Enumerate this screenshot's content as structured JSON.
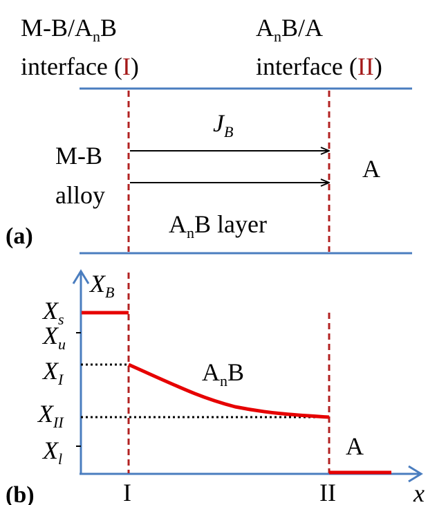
{
  "colors": {
    "blue": "#4a7dbf",
    "red": "#e60000",
    "dark_red": "#a31919",
    "text": "#000000"
  },
  "panel_a": {
    "label": "(a)",
    "interface_I": {
      "line1_main": "M-B/A",
      "line1_sub": "n",
      "line1_end": "B",
      "line2": "interface (",
      "roman": "I",
      "close": ")"
    },
    "interface_II": {
      "line1_main": "A",
      "line1_sub": "n",
      "line1_end": "B/A",
      "line2": "interface (",
      "roman": "II",
      "close": ")"
    },
    "flux": {
      "main": "J",
      "sub": "B"
    },
    "left_region": {
      "line1": "M-B",
      "line2": "alloy"
    },
    "right_region": "A",
    "layer": {
      "main": "A",
      "sub": "n",
      "end": "B layer"
    }
  },
  "panel_b": {
    "label": "(b)",
    "y_axis_label": {
      "main": "X",
      "sub": "B"
    },
    "x_axis_label": "x",
    "y_ticks": [
      {
        "main": "X",
        "sub": "s"
      },
      {
        "main": "X",
        "sub": "u"
      },
      {
        "main": "X",
        "sub": "I"
      },
      {
        "main": "X",
        "sub": "II"
      },
      {
        "main": "X",
        "sub": "l"
      }
    ],
    "x_ticks": [
      "I",
      "II"
    ],
    "phase_label": {
      "main": "A",
      "sub": "n",
      "end": "B"
    },
    "right_label": "A"
  }
}
